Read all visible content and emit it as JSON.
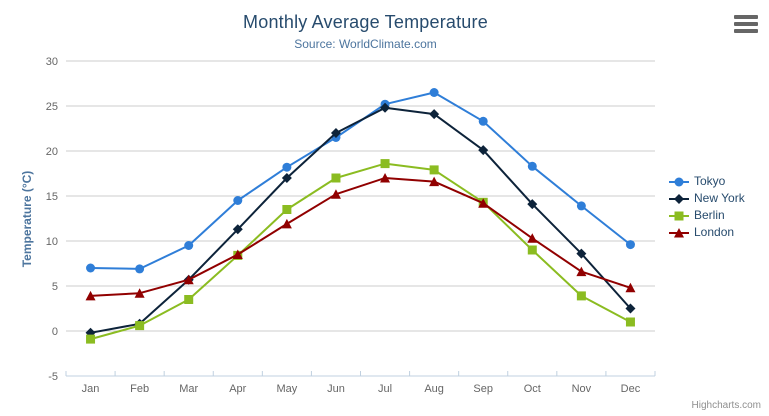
{
  "chart": {
    "credits": "Highcharts.com",
    "icons": {
      "context_menu": "hamburger-icon"
    }
  },
  "chart_data": {
    "type": "line",
    "title": "Monthly Average Temperature",
    "subtitle": "Source: WorldClimate.com",
    "xlabel": "",
    "ylabel": "Temperature (°C)",
    "categories": [
      "Jan",
      "Feb",
      "Mar",
      "Apr",
      "May",
      "Jun",
      "Jul",
      "Aug",
      "Sep",
      "Oct",
      "Nov",
      "Dec"
    ],
    "series": [
      {
        "name": "Tokyo",
        "color": "#2f7ed8",
        "symbol": "circle",
        "values": [
          7.0,
          6.9,
          9.5,
          14.5,
          18.2,
          21.5,
          25.2,
          26.5,
          23.3,
          18.3,
          13.9,
          9.6
        ]
      },
      {
        "name": "New York",
        "color": "#0d233a",
        "symbol": "diamond",
        "values": [
          -0.2,
          0.8,
          5.7,
          11.3,
          17.0,
          22.0,
          24.8,
          24.1,
          20.1,
          14.1,
          8.6,
          2.5
        ]
      },
      {
        "name": "Berlin",
        "color": "#8bbc21",
        "symbol": "square",
        "values": [
          -0.9,
          0.6,
          3.5,
          8.4,
          13.5,
          17.0,
          18.6,
          17.9,
          14.3,
          9.0,
          3.9,
          1.0
        ]
      },
      {
        "name": "London",
        "color": "#910000",
        "symbol": "triangle",
        "values": [
          3.9,
          4.2,
          5.7,
          8.5,
          11.9,
          15.2,
          17.0,
          16.6,
          14.2,
          10.3,
          6.6,
          4.8
        ]
      }
    ],
    "ylim": [
      -5,
      30
    ],
    "yticks": [
      -5,
      0,
      5,
      10,
      15,
      20,
      25,
      30
    ],
    "grid": true,
    "legend_position": "right",
    "axis_colors": {
      "grid": "#cccccc",
      "axis_line": "#c0d0e0",
      "tick_label": "#666666"
    }
  }
}
